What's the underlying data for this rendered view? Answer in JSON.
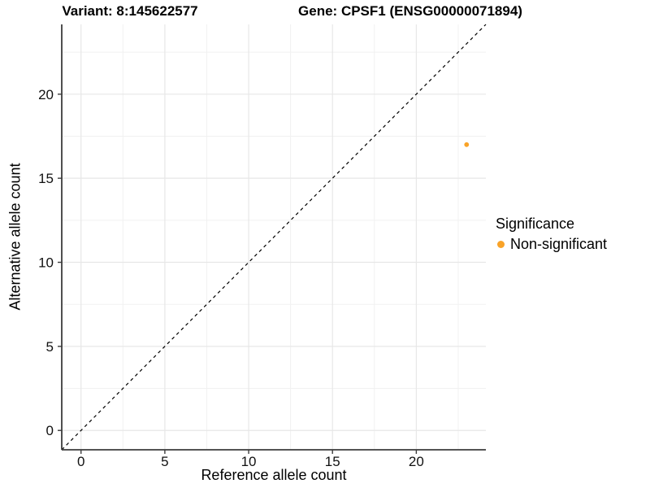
{
  "titles": {
    "variant": "Variant: 8:145622577",
    "gene": "Gene: CPSF1 (ENSG00000071894)"
  },
  "chart_data": {
    "type": "scatter",
    "xlabel": "Reference allele count",
    "ylabel": "Alternative allele count",
    "xlim": [
      -1.15,
      24.15
    ],
    "ylim": [
      -1.15,
      24.15
    ],
    "x_major_ticks": [
      0,
      5,
      10,
      15,
      20
    ],
    "x_minor_ticks": [
      2.5,
      7.5,
      12.5,
      17.5,
      22.5
    ],
    "y_major_ticks": [
      0,
      5,
      10,
      15,
      20
    ],
    "y_minor_ticks": [
      2.5,
      7.5,
      12.5,
      17.5,
      22.5
    ],
    "grid": true,
    "points": [
      {
        "x": 23,
        "y": 17,
        "series": "Non-significant"
      }
    ],
    "abline": {
      "slope": 1,
      "intercept": 0,
      "style": "dashed"
    },
    "legend": {
      "title": "Significance",
      "position": "right",
      "items": [
        {
          "label": "Non-significant",
          "color": "#F9A328"
        }
      ]
    },
    "colors": {
      "point_non_significant": "#F9A328",
      "grid_major": "#E7E7E7",
      "grid_minor": "#F1F1F1",
      "axis_line": "#3C3C3C",
      "abline": "#000000",
      "tick_label": "#111111"
    }
  }
}
